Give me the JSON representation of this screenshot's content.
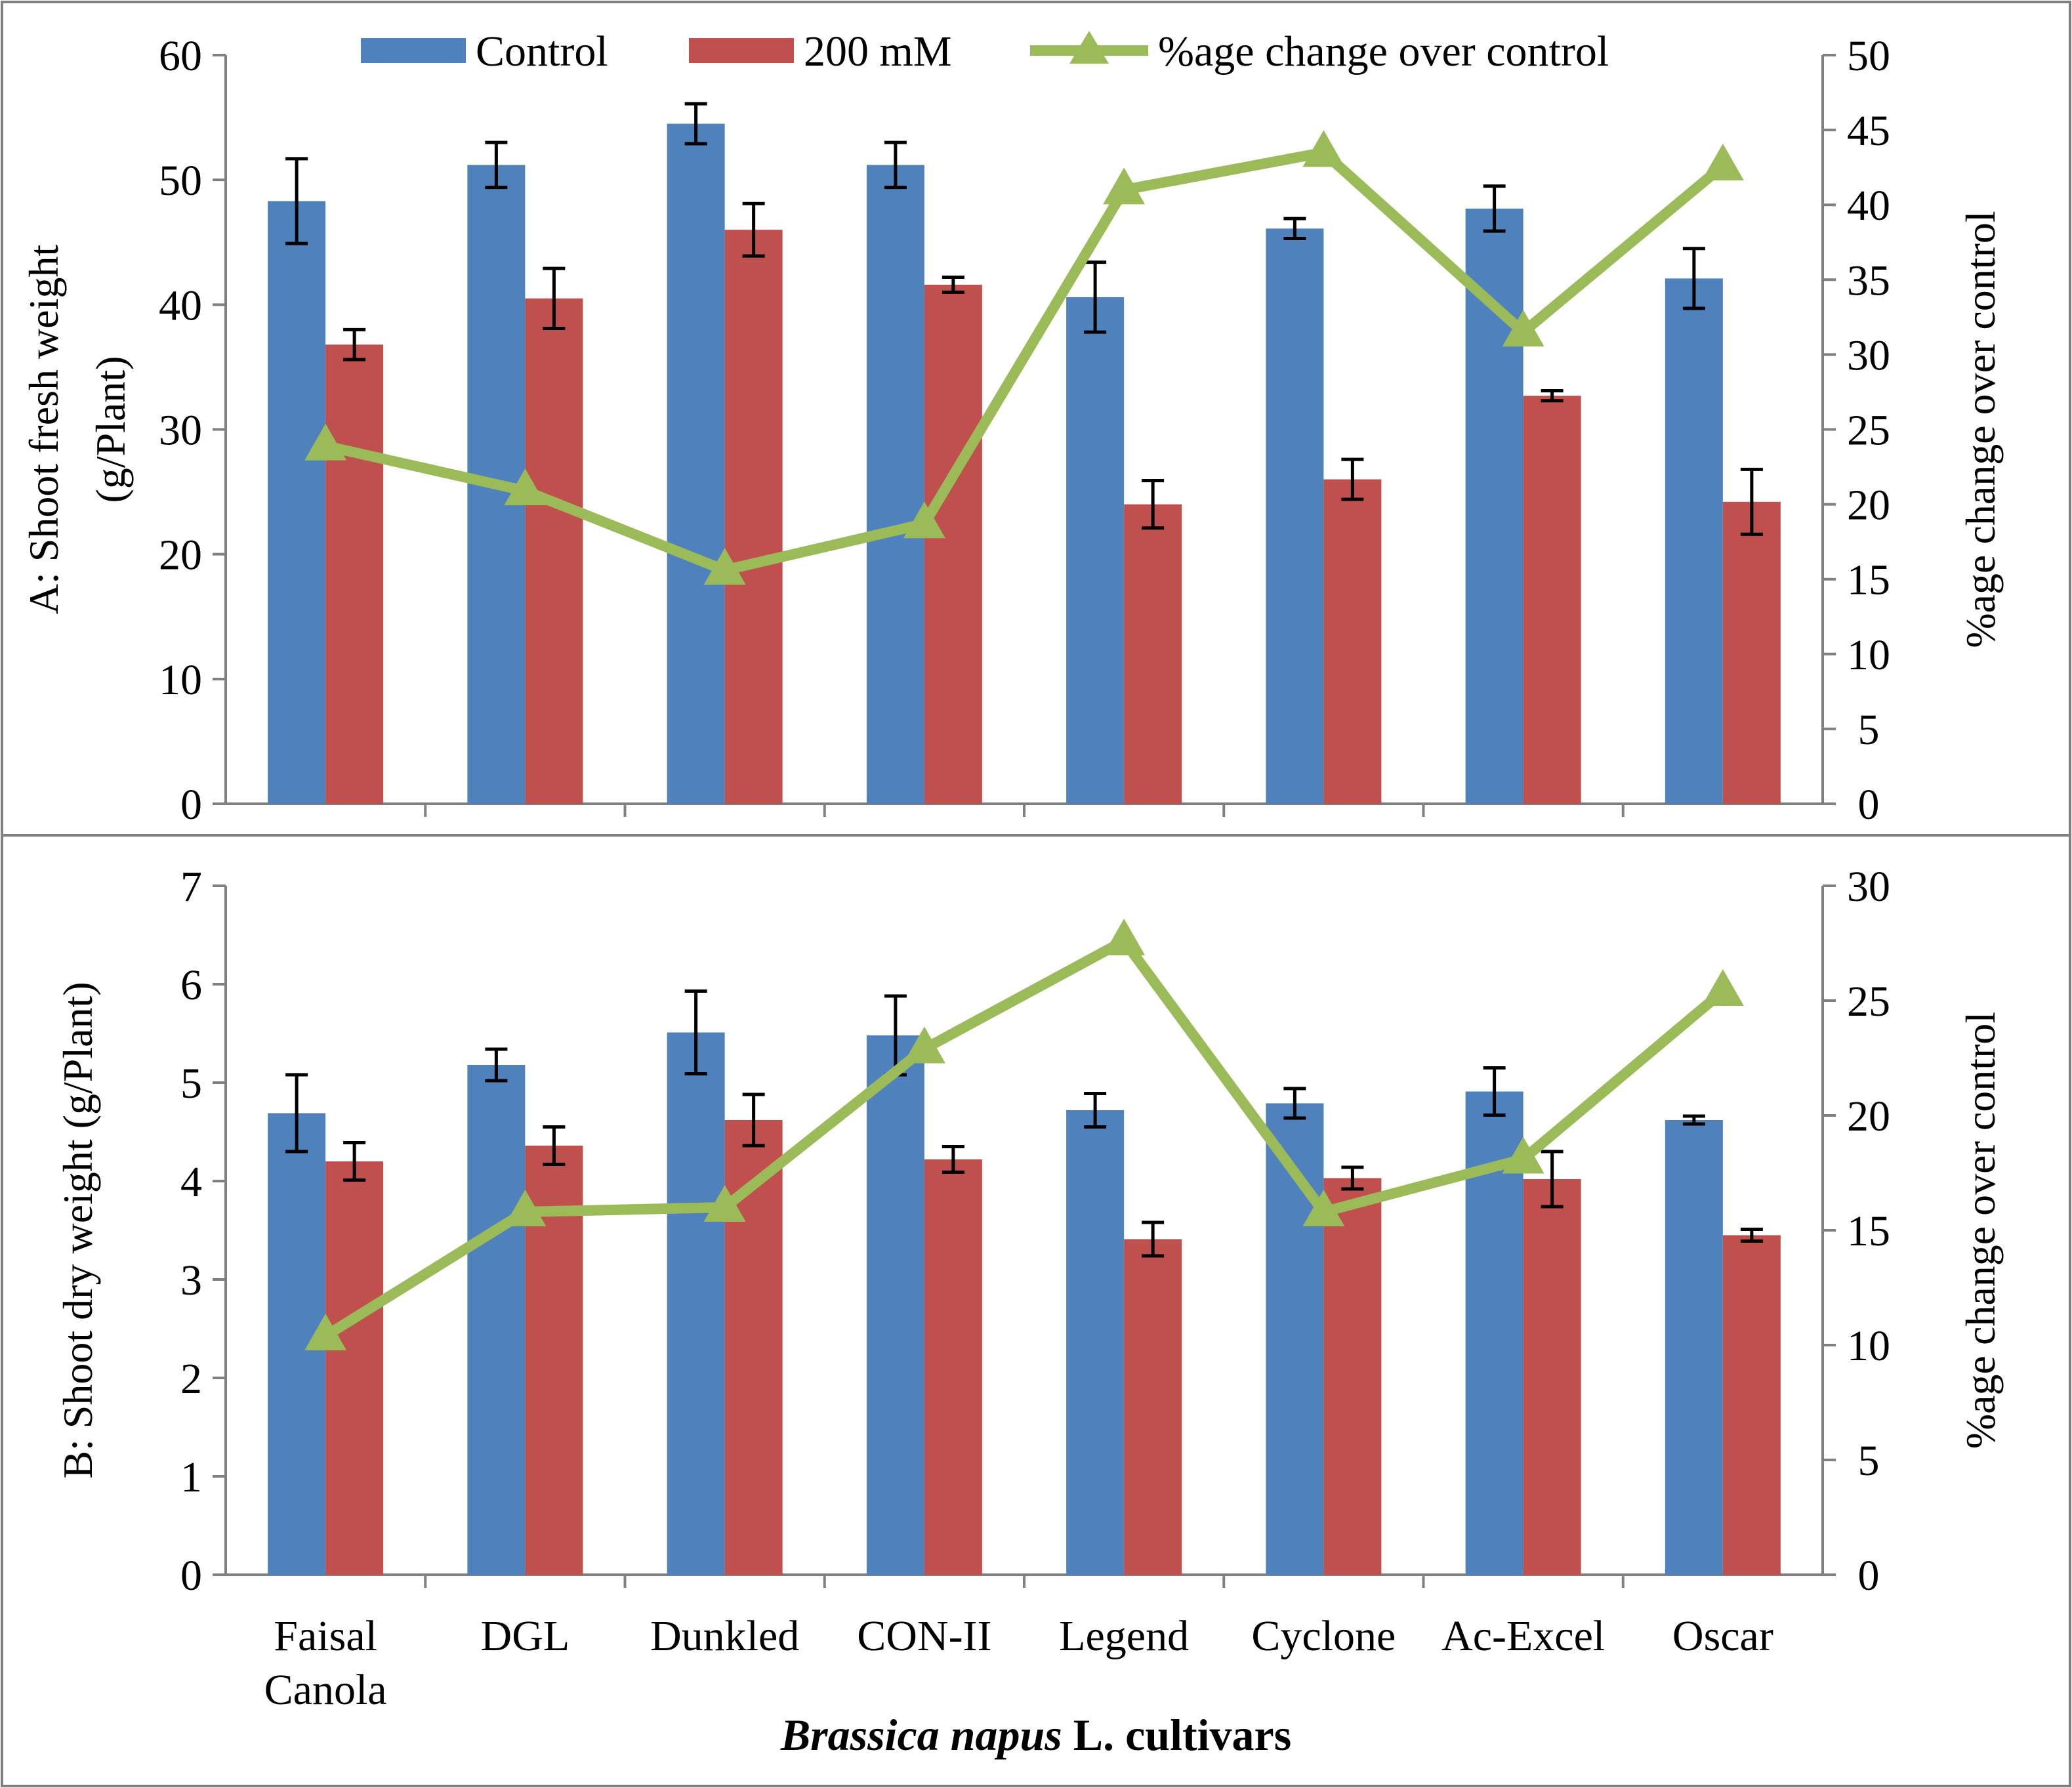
{
  "colors": {
    "control": "#4F81BD",
    "treated": "#C0504D",
    "change": "#9BBB59",
    "axis": "#808080",
    "error": "#000000"
  },
  "legend": {
    "control": "Control",
    "treated": "200 mM",
    "change": "%age change over control"
  },
  "x_title": {
    "italic": "Brassica napus",
    "rest": " L. cultivars"
  },
  "chart_data": [
    {
      "type": "bar",
      "panel": "A",
      "ylabel_line1": "A: Shoot fresh weight",
      "ylabel_line2": "(g/Plant)",
      "y2label": "%age change over control",
      "categories": [
        [
          "Faisal",
          "Canola"
        ],
        [
          "DGL"
        ],
        [
          "Dunkled"
        ],
        [
          "CON-II"
        ],
        [
          "Legend"
        ],
        [
          "Cyclone"
        ],
        [
          "Ac-Excel"
        ],
        [
          "Oscar"
        ]
      ],
      "ylim": [
        0,
        60
      ],
      "yticks": [
        0,
        10,
        20,
        30,
        40,
        50,
        60
      ],
      "y2lim": [
        0,
        50
      ],
      "y2ticks": [
        0,
        5,
        10,
        15,
        20,
        25,
        30,
        35,
        40,
        45,
        50
      ],
      "series": [
        {
          "name": "Control",
          "values": [
            48.3,
            51.2,
            54.5,
            51.2,
            40.6,
            46.1,
            47.7,
            42.1
          ],
          "errors": [
            3.4,
            1.8,
            1.6,
            1.8,
            2.8,
            0.8,
            1.8,
            2.4
          ]
        },
        {
          "name": "200 mM",
          "values": [
            36.8,
            40.5,
            46.0,
            41.6,
            24.0,
            26.0,
            32.7,
            24.2
          ],
          "errors": [
            1.2,
            2.4,
            2.1,
            0.6,
            1.9,
            1.6,
            0.4,
            2.6
          ]
        }
      ],
      "line": {
        "name": "%age change over control",
        "values": [
          23.9,
          20.9,
          15.6,
          18.7,
          41.0,
          43.5,
          31.5,
          42.6
        ]
      }
    },
    {
      "type": "bar",
      "panel": "B",
      "ylabel_line1": "B: Shoot dry weight (g/Plant)",
      "ylabel_line2": "",
      "y2label": "%age change over control",
      "categories": [
        [
          "Faisal",
          "Canola"
        ],
        [
          "DGL"
        ],
        [
          "Dunkled"
        ],
        [
          "CON-II"
        ],
        [
          "Legend"
        ],
        [
          "Cyclone"
        ],
        [
          "Ac-Excel"
        ],
        [
          "Oscar"
        ]
      ],
      "ylim": [
        0,
        7
      ],
      "yticks": [
        0,
        1,
        2,
        3,
        4,
        5,
        6,
        7
      ],
      "y2lim": [
        0,
        30
      ],
      "y2ticks": [
        0,
        5,
        10,
        15,
        20,
        25,
        30
      ],
      "series": [
        {
          "name": "Control",
          "values": [
            4.69,
            5.18,
            5.51,
            5.48,
            4.72,
            4.79,
            4.91,
            4.62
          ],
          "errors": [
            0.39,
            0.16,
            0.42,
            0.4,
            0.17,
            0.15,
            0.24,
            0.04
          ]
        },
        {
          "name": "200 mM",
          "values": [
            4.2,
            4.36,
            4.62,
            4.22,
            3.41,
            4.03,
            4.02,
            3.45
          ],
          "errors": [
            0.19,
            0.19,
            0.26,
            0.13,
            0.17,
            0.11,
            0.28,
            0.06
          ]
        }
      ],
      "line": {
        "name": "%age change over control",
        "values": [
          10.4,
          15.8,
          16.0,
          22.9,
          27.6,
          15.8,
          18.1,
          25.4
        ]
      }
    }
  ]
}
